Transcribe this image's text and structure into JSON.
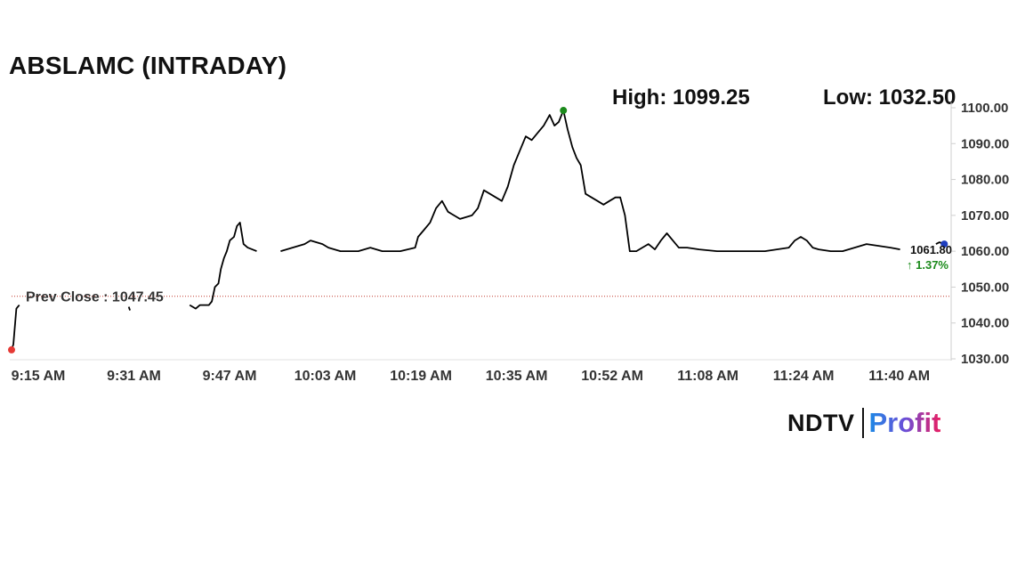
{
  "header": {
    "title": "ABSLAMC (INTRADAY)",
    "high_text": "High: 1099.25",
    "low_text": "Low: 1032.50"
  },
  "logo": {
    "brand": "NDTV",
    "product": "Profit"
  },
  "chart_data": {
    "type": "line",
    "title": "ABSLAMC (INTRADAY)",
    "high": 1099.25,
    "low": 1032.5,
    "prev_close": 1047.45,
    "prev_close_label": "Prev Close : 1047.45",
    "last_value": 1061.8,
    "last_label": "1061.80",
    "change_label": "↑ 1.37%",
    "ylim": [
      1030,
      1100
    ],
    "y_ticks": [
      1100,
      1090,
      1080,
      1070,
      1060,
      1050,
      1040,
      1030
    ],
    "y_tick_labels": [
      "1100.00",
      "1090.00",
      "1080.00",
      "1070.00",
      "1060.00",
      "1050.00",
      "1040.00",
      "1030.00"
    ],
    "xlim_minutes": [
      0,
      157
    ],
    "x_ticks": [
      {
        "m": 0,
        "label": "9:15 AM"
      },
      {
        "m": 16,
        "label": "9:31 AM"
      },
      {
        "m": 32,
        "label": "9:47 AM"
      },
      {
        "m": 48,
        "label": "10:03 AM"
      },
      {
        "m": 64,
        "label": "10:19 AM"
      },
      {
        "m": 80,
        "label": "10:35 AM"
      },
      {
        "m": 96,
        "label": "10:52 AM"
      },
      {
        "m": 112,
        "label": "11:08 AM"
      },
      {
        "m": 128,
        "label": "11:24 AM"
      },
      {
        "m": 144,
        "label": "11:40 AM"
      }
    ],
    "grid": false,
    "colors": {
      "line": "#000000",
      "prev_close": "#c0392b",
      "low_dot": "#e53935",
      "high_dot": "#1b8a1b",
      "last_dot": "#1f3fbf",
      "change": "#1b8a1b"
    },
    "series": [
      {
        "points": [
          [
            0,
            1032.5
          ],
          [
            0.3,
            1034
          ],
          [
            0.8,
            1044
          ],
          [
            1.3,
            1045
          ],
          [
            19.6,
            1044.5
          ],
          [
            19.8,
            1043.5
          ],
          [
            29.8,
            1045
          ],
          [
            30.8,
            1044
          ],
          [
            31.5,
            1045
          ],
          [
            33,
            1045
          ],
          [
            33.5,
            1046
          ],
          [
            34,
            1050
          ],
          [
            34.6,
            1051
          ],
          [
            35,
            1055
          ],
          [
            35.5,
            1058
          ],
          [
            36,
            1060
          ],
          [
            36.5,
            1063
          ],
          [
            37.2,
            1064
          ],
          [
            37.7,
            1067
          ],
          [
            38.2,
            1068
          ],
          [
            38.8,
            1062
          ],
          [
            39.5,
            1061
          ],
          [
            41,
            1060
          ],
          [
            45,
            1060
          ],
          [
            47,
            1061
          ],
          [
            49,
            1062
          ],
          [
            50,
            1063
          ],
          [
            52,
            1062
          ],
          [
            53,
            1061
          ],
          [
            55,
            1060
          ],
          [
            58,
            1060
          ],
          [
            60,
            1061
          ],
          [
            62,
            1060
          ],
          [
            65,
            1060
          ],
          [
            67.5,
            1061
          ],
          [
            68,
            1064
          ],
          [
            69,
            1066
          ],
          [
            70,
            1068
          ],
          [
            71,
            1072
          ],
          [
            72,
            1074
          ],
          [
            73,
            1071
          ],
          [
            74,
            1070
          ],
          [
            75,
            1069
          ],
          [
            77,
            1070
          ],
          [
            78,
            1072
          ],
          [
            78.6,
            1075
          ],
          [
            79,
            1077
          ],
          [
            80,
            1076
          ],
          [
            81,
            1075
          ],
          [
            82,
            1074
          ],
          [
            83,
            1078
          ],
          [
            84,
            1084
          ],
          [
            85,
            1088
          ],
          [
            86,
            1092
          ],
          [
            87,
            1091
          ],
          [
            88,
            1093
          ],
          [
            89,
            1095
          ],
          [
            90,
            1098
          ],
          [
            90.8,
            1095
          ],
          [
            91.5,
            1096
          ],
          [
            92.3,
            1099.25
          ],
          [
            93,
            1094
          ],
          [
            93.8,
            1089
          ],
          [
            94.5,
            1086
          ],
          [
            95.2,
            1084
          ],
          [
            96,
            1076
          ],
          [
            97,
            1075
          ],
          [
            98,
            1074
          ],
          [
            99,
            1073
          ],
          [
            100,
            1074
          ],
          [
            101,
            1075
          ],
          [
            101.8,
            1075
          ],
          [
            102.6,
            1070
          ],
          [
            103.4,
            1060
          ],
          [
            104.5,
            1060
          ],
          [
            105.5,
            1061
          ],
          [
            106.5,
            1062
          ],
          [
            107.6,
            1060.5
          ],
          [
            108.6,
            1063
          ],
          [
            109.6,
            1065
          ],
          [
            110.6,
            1063
          ],
          [
            111.6,
            1061
          ],
          [
            113,
            1061
          ],
          [
            115,
            1060.5
          ],
          [
            118,
            1060
          ],
          [
            121,
            1060
          ],
          [
            124,
            1060
          ],
          [
            126,
            1060
          ],
          [
            128,
            1060.5
          ],
          [
            130,
            1061
          ],
          [
            131,
            1063
          ],
          [
            132,
            1064
          ],
          [
            133,
            1063
          ],
          [
            134,
            1061
          ],
          [
            135,
            1060.5
          ],
          [
            137,
            1060
          ],
          [
            139,
            1060
          ],
          [
            141,
            1061
          ],
          [
            143,
            1062
          ],
          [
            145,
            1061.5
          ],
          [
            147,
            1061
          ],
          [
            148.6,
            1060.5
          ],
          [
            154.6,
            1062
          ],
          [
            155.2,
            1062.5
          ],
          [
            156,
            1062
          ]
        ]
      }
    ]
  }
}
